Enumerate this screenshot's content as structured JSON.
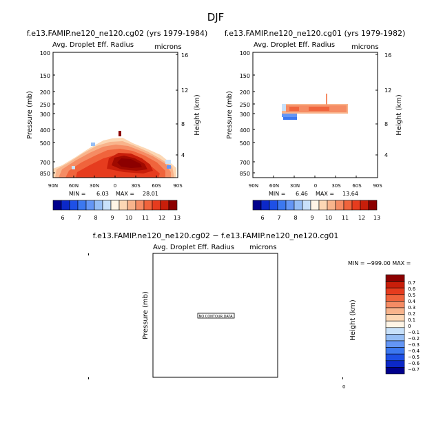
{
  "page_title": "DJF",
  "chart_data": [
    {
      "type": "heatmap",
      "title": "f.e13.FAMIP.ne120_ne120.cg02 (yrs 1979-1984)",
      "subtitle_left": "Avg. Droplet Eff. Radius",
      "subtitle_right": "microns",
      "ylabel": "Pressure (mb)",
      "ylabel_right": "Height (km)",
      "y_ticks": [
        "100",
        "150",
        "200",
        "250",
        "300",
        "400",
        "500",
        "700",
        "850"
      ],
      "height_ticks": [
        "16",
        "12",
        "8",
        "4"
      ],
      "x_ticks": [
        "90N",
        "60N",
        "30N",
        "0",
        "30S",
        "60S",
        "90S"
      ],
      "min_label": "MIN =",
      "min_value": "6.03",
      "max_label": "MAX =",
      "max_value": "28.01",
      "colorbar_levels": [
        "6",
        "7",
        "8",
        "9",
        "10",
        "11",
        "12",
        "13"
      ]
    },
    {
      "type": "heatmap",
      "title": "f.e13.FAMIP.ne120_ne120.cg01 (yrs 1979-1982)",
      "subtitle_left": "Avg. Droplet Eff. Radius",
      "subtitle_right": "microns",
      "ylabel": "Pressure (mb)",
      "ylabel_right": "Height (km)",
      "y_ticks": [
        "100",
        "150",
        "200",
        "250",
        "300",
        "400",
        "500",
        "700",
        "850"
      ],
      "height_ticks": [
        "16",
        "12",
        "8",
        "4"
      ],
      "x_ticks": [
        "90N",
        "60N",
        "30N",
        "0",
        "30S",
        "60S",
        "90S"
      ],
      "min_label": "MIN =",
      "min_value": "6.46",
      "max_label": "MAX =",
      "max_value": "13.64",
      "colorbar_levels": [
        "6",
        "7",
        "8",
        "9",
        "10",
        "11",
        "12",
        "13"
      ]
    },
    {
      "type": "heatmap",
      "title": "f.e13.FAMIP.ne120_ne120.cg02 − f.e13.FAMIP.ne120_ne120.cg01",
      "subtitle_left": "Avg. Droplet Eff. Radius",
      "subtitle_right": "microns",
      "ylabel": "Pressure (mb)",
      "ylabel_right": "Height (km)",
      "no_data_text": "NO CONTOUR DATA",
      "minmax_text": "MIN = −999.00  MAX =",
      "bottom_tick": "0",
      "colorbar_levels": [
        "0.7",
        "0.6",
        "0.5",
        "0.4",
        "0.3",
        "0.2",
        "0.1",
        "0",
        "−0.1",
        "−0.2",
        "−0.3",
        "−0.4",
        "−0.5",
        "−0.6",
        "−0.7"
      ]
    }
  ],
  "colors": {
    "scale_13": [
      "#00008c",
      "#0c28c8",
      "#1e50e6",
      "#3c78f0",
      "#6496f5",
      "#96bef5",
      "#c8e1fa",
      "#fff5e6",
      "#fcd7b4",
      "#f8b48c",
      "#f58c64",
      "#f0643c",
      "#e63c1e",
      "#c81e0a",
      "#8c0000"
    ],
    "scale_diff": [
      "#8c0000",
      "#c81e0a",
      "#e63c1e",
      "#f0643c",
      "#f58c64",
      "#f8b48c",
      "#fcd7b4",
      "#fff5e6",
      "#c8e1fa",
      "#96bef5",
      "#6496f5",
      "#3c78f0",
      "#1e50e6",
      "#0c28c8",
      "#00008c"
    ]
  }
}
